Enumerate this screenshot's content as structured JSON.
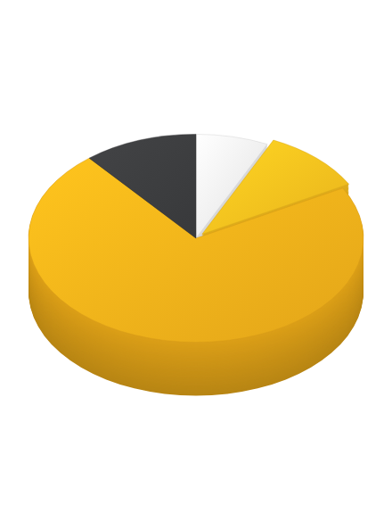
{
  "chart_data": {
    "type": "pie",
    "values": [
      7,
      10,
      72,
      11
    ],
    "colors": [
      "#eeeeee",
      "#f5bd1e",
      "#f0ae1a",
      "#3b3c3e"
    ]
  }
}
